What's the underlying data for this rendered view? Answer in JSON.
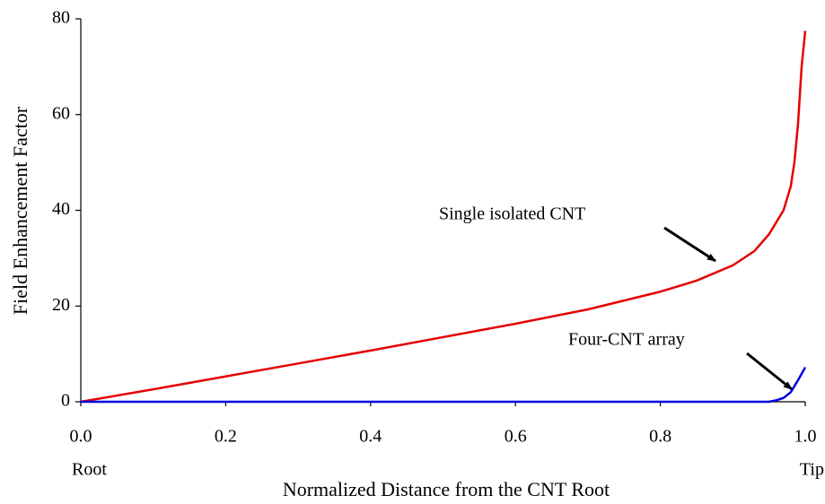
{
  "chart_data": {
    "type": "line",
    "x_label": "Normalized Distance from  the CNT Root",
    "y_label": "Field Enhancement Factor",
    "x_start_label": "Root",
    "x_end_label": "Tip",
    "xlim": [
      0,
      1
    ],
    "ylim": [
      0,
      80
    ],
    "xticks": [
      {
        "value": 0,
        "label": "0.0"
      },
      0.2,
      0.4,
      0.6,
      0.8,
      {
        "value": 1,
        "label": "1.0"
      }
    ],
    "yticks": [
      0,
      20,
      40,
      60,
      80
    ],
    "series": [
      {
        "name": "Single isolated CNT",
        "color": "#e60000",
        "x": [
          0,
          0.1,
          0.2,
          0.3,
          0.4,
          0.5,
          0.6,
          0.7,
          0.8,
          0.85,
          0.9,
          0.93,
          0.95,
          0.97,
          0.98,
          0.985,
          0.99,
          0.995,
          1.0
        ],
        "values": [
          0,
          2.6,
          5.3,
          8,
          10.7,
          13.5,
          16.3,
          19.3,
          23,
          25.3,
          28.5,
          31.5,
          35,
          40,
          45,
          50,
          58,
          70,
          77.5
        ]
      },
      {
        "name": "Four-CNT array",
        "color": "#0000e0",
        "x": [
          0,
          0.2,
          0.4,
          0.6,
          0.8,
          0.95,
          0.96,
          0.97,
          0.98,
          0.99,
          1.0
        ],
        "values": [
          0,
          0,
          0,
          0,
          0,
          0,
          0.3,
          0.8,
          2,
          4.5,
          7.2
        ]
      }
    ]
  }
}
